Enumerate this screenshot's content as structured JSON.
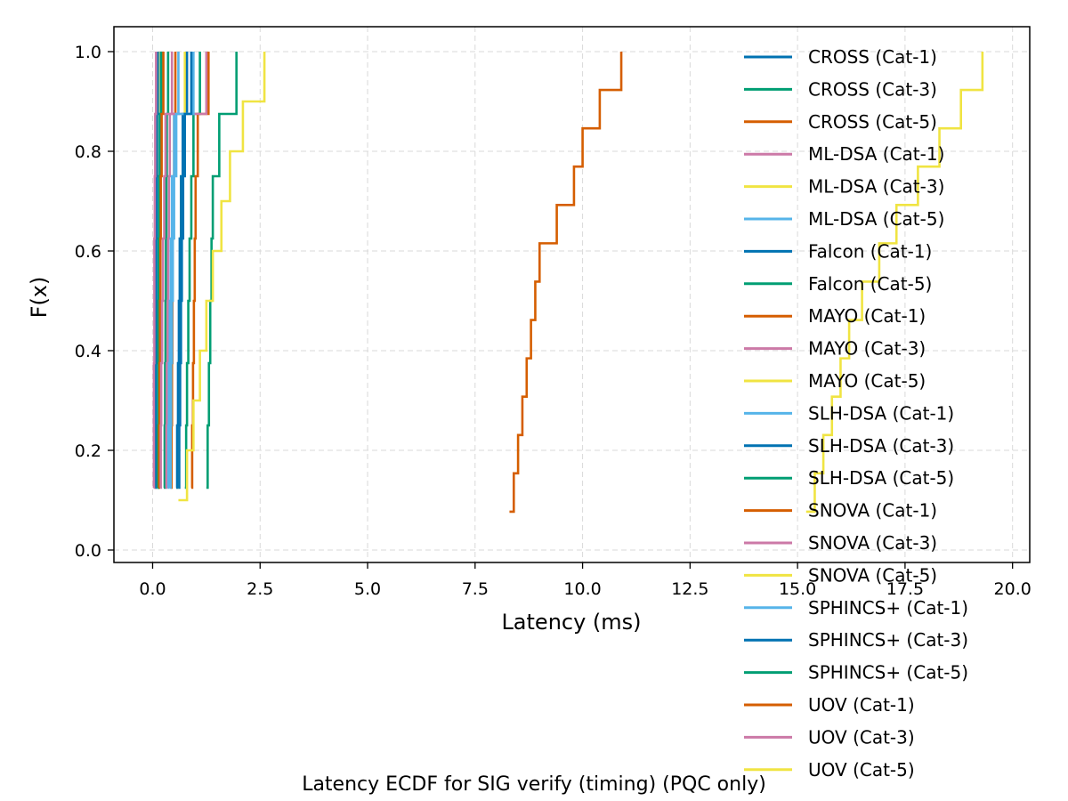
{
  "chart_data": {
    "type": "line",
    "subtype": "step-ecdf",
    "caption": "Latency ECDF for SIG verify (timing) (PQC only)",
    "xlabel": "Latency (ms)",
    "ylabel": "F(x)",
    "xlim": [
      -0.9,
      20.4
    ],
    "ylim": [
      -0.025,
      1.05
    ],
    "xticks": [
      0.0,
      2.5,
      5.0,
      7.5,
      10.0,
      12.5,
      15.0,
      17.5,
      20.0
    ],
    "xtick_labels": [
      "0.0",
      "2.5",
      "5.0",
      "7.5",
      "10.0",
      "12.5",
      "15.0",
      "17.5",
      "20.0"
    ],
    "yticks": [
      0.0,
      0.2,
      0.4,
      0.6,
      0.8,
      1.0
    ],
    "ytick_labels": [
      "0.0",
      "0.2",
      "0.4",
      "0.6",
      "0.8",
      "1.0"
    ],
    "grid": true,
    "legend_position": "right",
    "series": [
      {
        "name": "CROSS (Cat-1)",
        "color": "#0072B2",
        "x": [
          0.12,
          0.13,
          0.13,
          0.14,
          0.14,
          0.15,
          0.16,
          0.18
        ]
      },
      {
        "name": "CROSS (Cat-3)",
        "color": "#009E73",
        "x": [
          0.26,
          0.28,
          0.29,
          0.3,
          0.31,
          0.32,
          0.33,
          0.36
        ]
      },
      {
        "name": "CROSS (Cat-5)",
        "color": "#D55E00",
        "x": [
          0.42,
          0.44,
          0.45,
          0.46,
          0.47,
          0.48,
          0.5,
          0.53
        ]
      },
      {
        "name": "ML-DSA (Cat-1)",
        "color": "#CC79A7",
        "x": [
          0.05,
          0.06,
          0.06,
          0.07,
          0.07,
          0.08,
          0.09,
          0.1
        ]
      },
      {
        "name": "ML-DSA (Cat-3)",
        "color": "#F0E442",
        "x": [
          0.07,
          0.08,
          0.08,
          0.09,
          0.1,
          0.11,
          0.12,
          0.14
        ]
      },
      {
        "name": "ML-DSA (Cat-5)",
        "color": "#56B4E9",
        "x": [
          0.1,
          0.11,
          0.12,
          0.12,
          0.13,
          0.14,
          0.16,
          0.19
        ]
      },
      {
        "name": "Falcon (Cat-1)",
        "color": "#0072B2",
        "x": [
          0.06,
          0.07,
          0.07,
          0.08,
          0.08,
          0.09,
          0.1,
          0.12
        ]
      },
      {
        "name": "Falcon (Cat-5)",
        "color": "#009E73",
        "x": [
          0.11,
          0.12,
          0.13,
          0.13,
          0.14,
          0.15,
          0.17,
          0.2
        ]
      },
      {
        "name": "MAYO (Cat-1)",
        "color": "#D55E00",
        "x": [
          0.14,
          0.15,
          0.16,
          0.17,
          0.18,
          0.19,
          0.21,
          0.25
        ]
      },
      {
        "name": "MAYO (Cat-3)",
        "color": "#CC79A7",
        "x": [
          0.3,
          0.32,
          0.33,
          0.35,
          0.36,
          0.38,
          0.4,
          0.45
        ]
      },
      {
        "name": "MAYO (Cat-5)",
        "color": "#F0E442",
        "x": [
          0.55,
          0.58,
          0.6,
          0.62,
          0.64,
          0.66,
          0.7,
          0.75
        ]
      },
      {
        "name": "SLH-DSA (Cat-1)",
        "color": "#56B4E9",
        "x": [
          0.35,
          0.37,
          0.38,
          0.4,
          0.42,
          0.45,
          0.5,
          0.6
        ]
      },
      {
        "name": "SLH-DSA (Cat-3)",
        "color": "#0072B2",
        "x": [
          0.55,
          0.57,
          0.59,
          0.61,
          0.63,
          0.66,
          0.7,
          0.8
        ]
      },
      {
        "name": "SLH-DSA (Cat-5)",
        "color": "#009E73",
        "x": [
          0.75,
          0.78,
          0.8,
          0.83,
          0.86,
          0.9,
          0.95,
          1.1
        ]
      },
      {
        "name": "SNOVA (Cat-1)",
        "color": "#D55E00",
        "x": [
          0.9,
          0.92,
          0.94,
          0.96,
          0.98,
          1.0,
          1.05,
          1.3
        ]
      },
      {
        "name": "SNOVA (Cat-3)",
        "color": "#CC79A7",
        "x": [
          0.18,
          0.19,
          0.2,
          0.22,
          0.24,
          0.27,
          0.3,
          1.25
        ]
      },
      {
        "name": "SNOVA (Cat-5)",
        "color": "#F0E442",
        "x": [
          15.2,
          15.4,
          15.6,
          15.8,
          16.0,
          16.2,
          16.5,
          16.9,
          17.3,
          17.8,
          18.3,
          18.8,
          19.3
        ]
      },
      {
        "name": "SPHINCS+ (Cat-1)",
        "color": "#56B4E9",
        "x": [
          0.4,
          0.42,
          0.43,
          0.45,
          0.47,
          0.5,
          0.55,
          0.95
        ]
      },
      {
        "name": "SPHINCS+ (Cat-3)",
        "color": "#0072B2",
        "x": [
          0.6,
          0.62,
          0.64,
          0.66,
          0.68,
          0.71,
          0.75,
          0.9
        ]
      },
      {
        "name": "SPHINCS+ (Cat-5)",
        "color": "#009E73",
        "x": [
          1.25,
          1.28,
          1.31,
          1.34,
          1.37,
          1.4,
          1.55,
          1.95
        ]
      },
      {
        "name": "UOV (Cat-1)",
        "color": "#D55E00",
        "x": [
          8.3,
          8.4,
          8.5,
          8.6,
          8.7,
          8.8,
          8.9,
          9.0,
          9.4,
          9.8,
          10.0,
          10.4,
          10.9
        ]
      },
      {
        "name": "UOV (Cat-3)",
        "color": "#CC79A7",
        "x": [
          0.02,
          0.03,
          0.03,
          0.04,
          0.04,
          0.05,
          0.06,
          0.08
        ]
      },
      {
        "name": "UOV (Cat-5)",
        "color": "#F0E442",
        "x": [
          0.6,
          0.8,
          0.95,
          1.1,
          1.25,
          1.4,
          1.6,
          1.8,
          2.1,
          2.6
        ]
      }
    ]
  }
}
